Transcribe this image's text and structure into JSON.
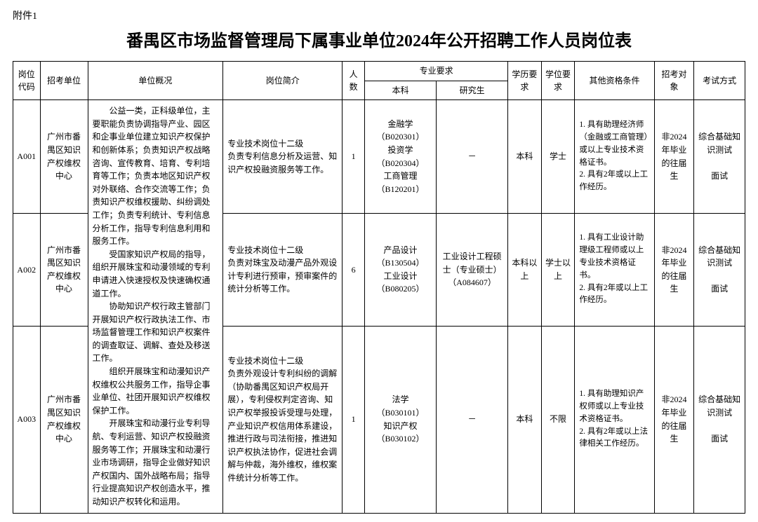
{
  "attachment_label": "附件1",
  "title": "番禺区市场监督管理局下属事业单位2024年公开招聘工作人员岗位表",
  "headers": {
    "code": "岗位代码",
    "unit": "招考单位",
    "overview": "单位概况",
    "job": "岗位简介",
    "num": "人数",
    "major_group": "专业要求",
    "undergrad": "本科",
    "postgrad": "研究生",
    "edu": "学历要求",
    "degree": "学位要求",
    "cond": "其他资格条件",
    "target": "招考对象",
    "exam": "考试方式"
  },
  "overview_text": "公益一类，正科级单位，主要职能负责协调指导产业、园区和企事业单位建立知识产权保护和创新体系；负责知识产权战略咨询、宣传教育、培育、专利培育等工作；负责本地区知识产权对外联络、合作交流等工作；负责知识产权维权援助、纠纷调处工作；负责专利统计、专利信息分析工作，指导专利信息利用和服务工作。\n　　受国家知识产权局的指导，组织开展珠宝和动漫领域的专利申请进入快速授权及快速确权通道工作。\n　　协助知识产权行政主管部门开展知识产权行政执法工作、市场监督管理工作和知识产权案件的调查取证、调解、查处及移送工作。\n　　组织开展珠宝和动漫知识产权维权公共服务工作，指导企事业单位、社团开展知识产权维权保护工作。\n　　开展珠宝和动漫行业专利导航、专利运营、知识产权投融资服务等工作；开展珠宝和动漫行业市场调研，指导企业做好知识产权国内、国外战略布局；指导行业提高知识产权创造水平，推动知识产权转化和运用。",
  "rows": [
    {
      "code": "A001",
      "unit": "广州市番禺区知识产权维权中心",
      "job": "专业技术岗位十二级\n负责专利信息分析及运营、知识产权投融资服务等工作。",
      "num": "1",
      "undergrad": "金融学（B020301）\n投资学（B020304）\n工商管理（B120201）",
      "postgrad": "－",
      "edu": "本科",
      "degree": "学士",
      "cond": "1. 具有助理经济师（金融或工商管理）或以上专业技术资格证书。\n2. 具有2年或以上工作经历。",
      "target": "非2024年毕业的往届生",
      "exam": "综合基础知识测试\n\n面试"
    },
    {
      "code": "A002",
      "unit": "广州市番禺区知识产权维权中心",
      "job": "专业技术岗位十二级\n负责对珠宝及动漫产品外观设计专利进行预审，预审案件的统计分析等工作。",
      "num": "6",
      "undergrad": "产品设计（B130504）\n工业设计（B080205）",
      "postgrad": "工业设计工程硕士（专业硕士）（A084607）",
      "edu": "本科以上",
      "degree": "学士以上",
      "cond": "1. 具有工业设计助理级工程师或以上专业技术资格证书。\n2. 具有2年或以上工作经历。",
      "target": "非2024年毕业的往届生",
      "exam": "综合基础知识测试\n\n面试"
    },
    {
      "code": "A003",
      "unit": "广州市番禺区知识产权维权中心",
      "job": "专业技术岗位十二级\n负责外观设计专利纠纷的调解（协助番禺区知识产权局开展），专利侵权判定咨询、知识产权举报投诉受理与处理，产业知识产权信用体系建设，推进行政与司法衔接，推进知识产权执法协作，促进社会调解与仲裁，海外维权，维权案件统计分析等工作。",
      "num": "1",
      "undergrad": "法学（B030101）\n知识产权（B030102）",
      "postgrad": "－",
      "edu": "本科",
      "degree": "不限",
      "cond": "1. 具有助理知识产权师或以上专业技术资格证书。\n2. 具有2年或以上法律相关工作经历。",
      "target": "非2024年毕业的往届生",
      "exam": "综合基础知识测试\n\n面试"
    }
  ]
}
